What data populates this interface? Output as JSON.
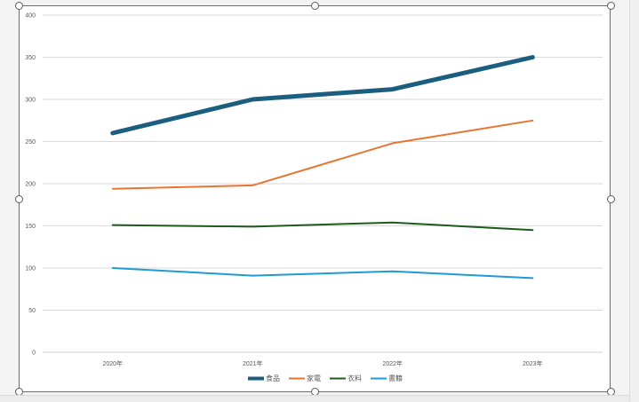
{
  "chart_data": {
    "type": "line",
    "categories": [
      "2020年",
      "2021年",
      "2022年",
      "2023年"
    ],
    "series": [
      {
        "name": "食品",
        "color": "#1b5e80",
        "width": 5,
        "values": [
          260,
          300,
          312,
          350
        ]
      },
      {
        "name": "家電",
        "color": "#e97432",
        "width": 2,
        "values": [
          194,
          198,
          248,
          275
        ]
      },
      {
        "name": "衣料",
        "color": "#1e5a1e",
        "width": 2,
        "values": [
          151,
          149,
          154,
          145
        ]
      },
      {
        "name": "書籍",
        "color": "#1f9ad2",
        "width": 2,
        "values": [
          100,
          91,
          96,
          88
        ]
      }
    ],
    "yticks": [
      0,
      50,
      100,
      150,
      200,
      250,
      300,
      350,
      400
    ],
    "ylim": [
      0,
      400
    ],
    "grid": true,
    "legend_position": "bottom"
  }
}
